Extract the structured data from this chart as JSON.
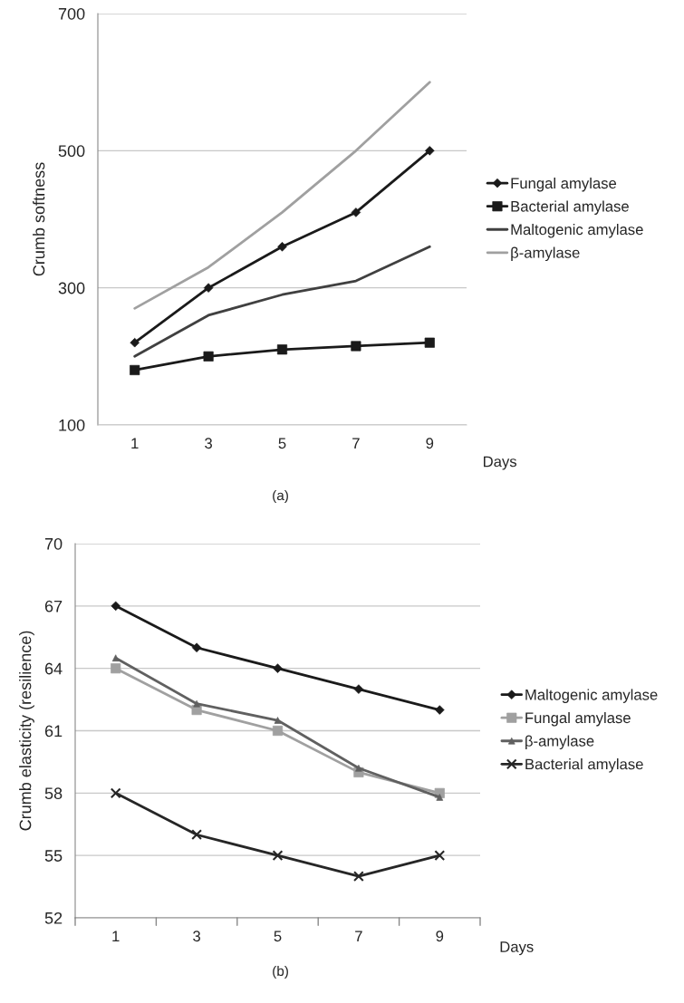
{
  "chart_data": [
    {
      "type": "line",
      "ylabel": "Crumb softness",
      "xlabel": "Days",
      "categories": [
        "1",
        "3",
        "5",
        "7",
        "9"
      ],
      "ylim": [
        100,
        700
      ],
      "yticks": [
        100,
        300,
        500,
        700
      ],
      "grid": "y",
      "legend": "right",
      "line_style": "solid",
      "annotations": [
        "(a)"
      ],
      "series": [
        {
          "name": "Fungal amylase",
          "color": "#1a1a1a",
          "marker": "diamond",
          "values": [
            220,
            300,
            360,
            410,
            500
          ]
        },
        {
          "name": "Bacterial amylase",
          "color": "#1a1a1a",
          "marker": "square",
          "values": [
            180,
            200,
            210,
            215,
            220
          ]
        },
        {
          "name": "Maltogenic amylase",
          "color": "#404040",
          "marker": "none",
          "values": [
            200,
            260,
            290,
            310,
            360
          ]
        },
        {
          "name": "β-amylase",
          "color": "#a0a0a0",
          "marker": "none",
          "values": [
            270,
            330,
            410,
            500,
            600
          ]
        }
      ]
    },
    {
      "type": "line",
      "ylabel": "Crumb elasticity (resilience)",
      "xlabel": "Days",
      "categories": [
        "1",
        "3",
        "5",
        "7",
        "9"
      ],
      "ylim": [
        52,
        70
      ],
      "yticks": [
        52,
        55,
        58,
        61,
        64,
        67,
        70
      ],
      "grid": "y",
      "legend": "right",
      "line_style": "solid",
      "annotations": [
        "(b)"
      ],
      "series": [
        {
          "name": "Maltogenic amylase",
          "color": "#1a1a1a",
          "marker": "diamond",
          "values": [
            67,
            65,
            64,
            63,
            62
          ]
        },
        {
          "name": "Fungal amylase",
          "color": "#a0a0a0",
          "marker": "square",
          "values": [
            64,
            62,
            61,
            59,
            58
          ]
        },
        {
          "name": "β-amylase",
          "color": "#606060",
          "marker": "triangle",
          "values": [
            64.5,
            62.3,
            61.5,
            59.2,
            57.8
          ]
        },
        {
          "name": "Bacterial amylase",
          "color": "#262626",
          "marker": "cross",
          "values": [
            58,
            56,
            55,
            54,
            55
          ]
        }
      ]
    }
  ]
}
